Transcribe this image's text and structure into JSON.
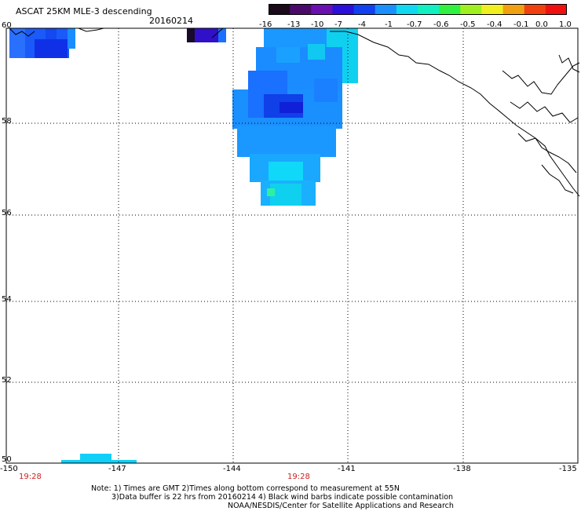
{
  "header": {
    "title": "ASCAT 25KM MLE-3 descending",
    "date": "20160214"
  },
  "colorbar": {
    "labels": [
      "-16",
      "-13",
      "-10",
      "-7",
      "-4",
      "-1",
      "-0.7",
      "-0.6",
      "-0.5",
      "-0.4",
      "-0.1",
      "0.0",
      "1.0"
    ],
    "colors": [
      "#1a0a1a",
      "#4a0a6a",
      "#6a10b0",
      "#2a10d8",
      "#1040f0",
      "#1a90ff",
      "#10d8f0",
      "#10f0c0",
      "#30f040",
      "#a0f020",
      "#f0f020",
      "#f0a010",
      "#f04010",
      "#f01010"
    ]
  },
  "axes": {
    "lon_ticks": [
      "-150",
      "-147",
      "-144",
      "-141",
      "-138",
      "-135"
    ],
    "lat_ticks": [
      "60",
      "58",
      "56",
      "54",
      "52",
      "50"
    ]
  },
  "times": {
    "left": "19:28",
    "center": "19:28"
  },
  "notes": {
    "line1": "Note: 1) Times are GMT 2)Times along bottom correspond to measurement at 55N",
    "line2": "3)Data buffer is 22 hrs from 20160214 4) Black wind barbs indicate possible contamination",
    "line3": "NOAA/NESDIS/Center for Satellite Applications and Research"
  }
}
